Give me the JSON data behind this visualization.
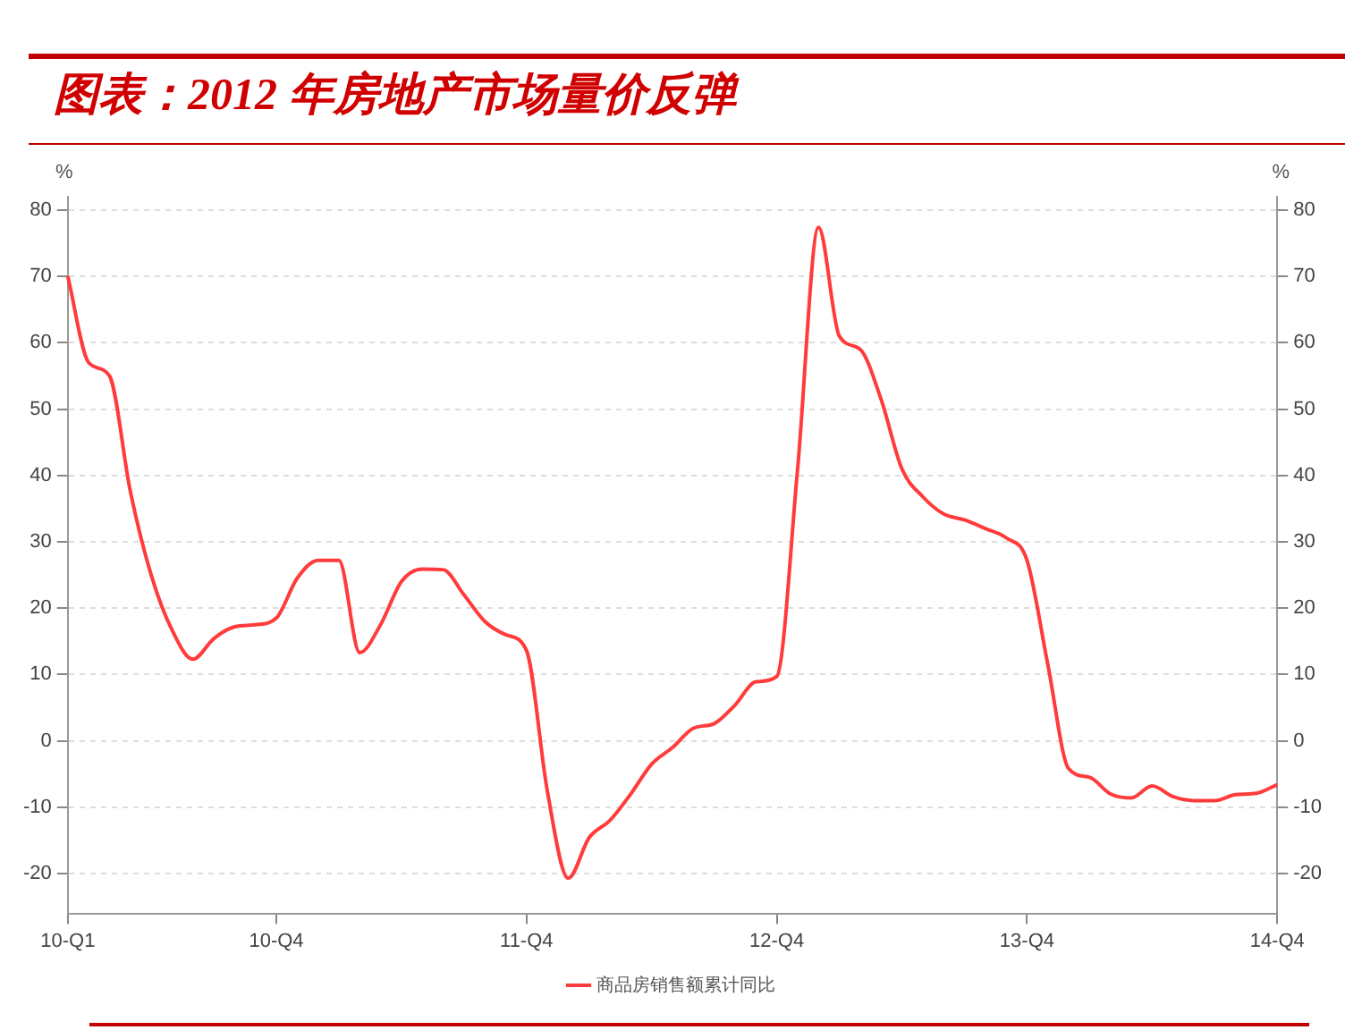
{
  "chart_data": {
    "type": "line",
    "title": "图表：2012 年房地产市场量价反弹",
    "ylabel": "%",
    "y2label": "%",
    "categories": [
      "10-Q1",
      null,
      null,
      null,
      null,
      null,
      null,
      null,
      null,
      null,
      "10-Q4",
      null,
      null,
      null,
      null,
      null,
      null,
      null,
      null,
      null,
      null,
      null,
      "11-Q4",
      null,
      null,
      null,
      null,
      null,
      null,
      null,
      null,
      null,
      null,
      null,
      "12-Q4",
      null,
      null,
      null,
      null,
      null,
      null,
      null,
      null,
      null,
      null,
      null,
      "13-Q4",
      null,
      null,
      null,
      null,
      null,
      null,
      null,
      null,
      null,
      null,
      null,
      "14-Q4"
    ],
    "series": [
      {
        "name": "商品房销售额累计同比",
        "color": "#ff3b3b",
        "values": [
          70,
          57,
          55,
          37.6,
          25,
          16.7,
          12.3,
          15.4,
          17.2,
          17.5,
          18.5,
          24.5,
          27.2,
          27.2,
          13.3,
          17.5,
          24,
          25.9,
          25.8,
          22,
          18,
          16,
          13.6,
          -7.6,
          -20.7,
          -14.6,
          -12,
          -8,
          -3.5,
          -1,
          1.9,
          2.6,
          5.4,
          8.9,
          9.7,
          41,
          77.4,
          61,
          59,
          51.5,
          41,
          36.8,
          34.2,
          33.3,
          32,
          30.6,
          27.2,
          11.5,
          -4.2,
          -5.5,
          -8,
          -8.6,
          -6.8,
          -8.4,
          -9,
          -9,
          -8.1,
          -7.9,
          -6.6
        ]
      }
    ],
    "ylim": [
      -26,
      82
    ],
    "yticks": [
      -20,
      -10,
      0,
      10,
      20,
      30,
      40,
      50,
      60,
      70,
      80
    ],
    "y2lim": [
      -26,
      82
    ],
    "y2ticks": [
      -20,
      -10,
      0,
      10,
      20,
      30,
      40,
      50,
      60,
      70,
      80
    ],
    "grid": "y",
    "legend": "bottom",
    "marker": "none",
    "line_style": "solid"
  }
}
